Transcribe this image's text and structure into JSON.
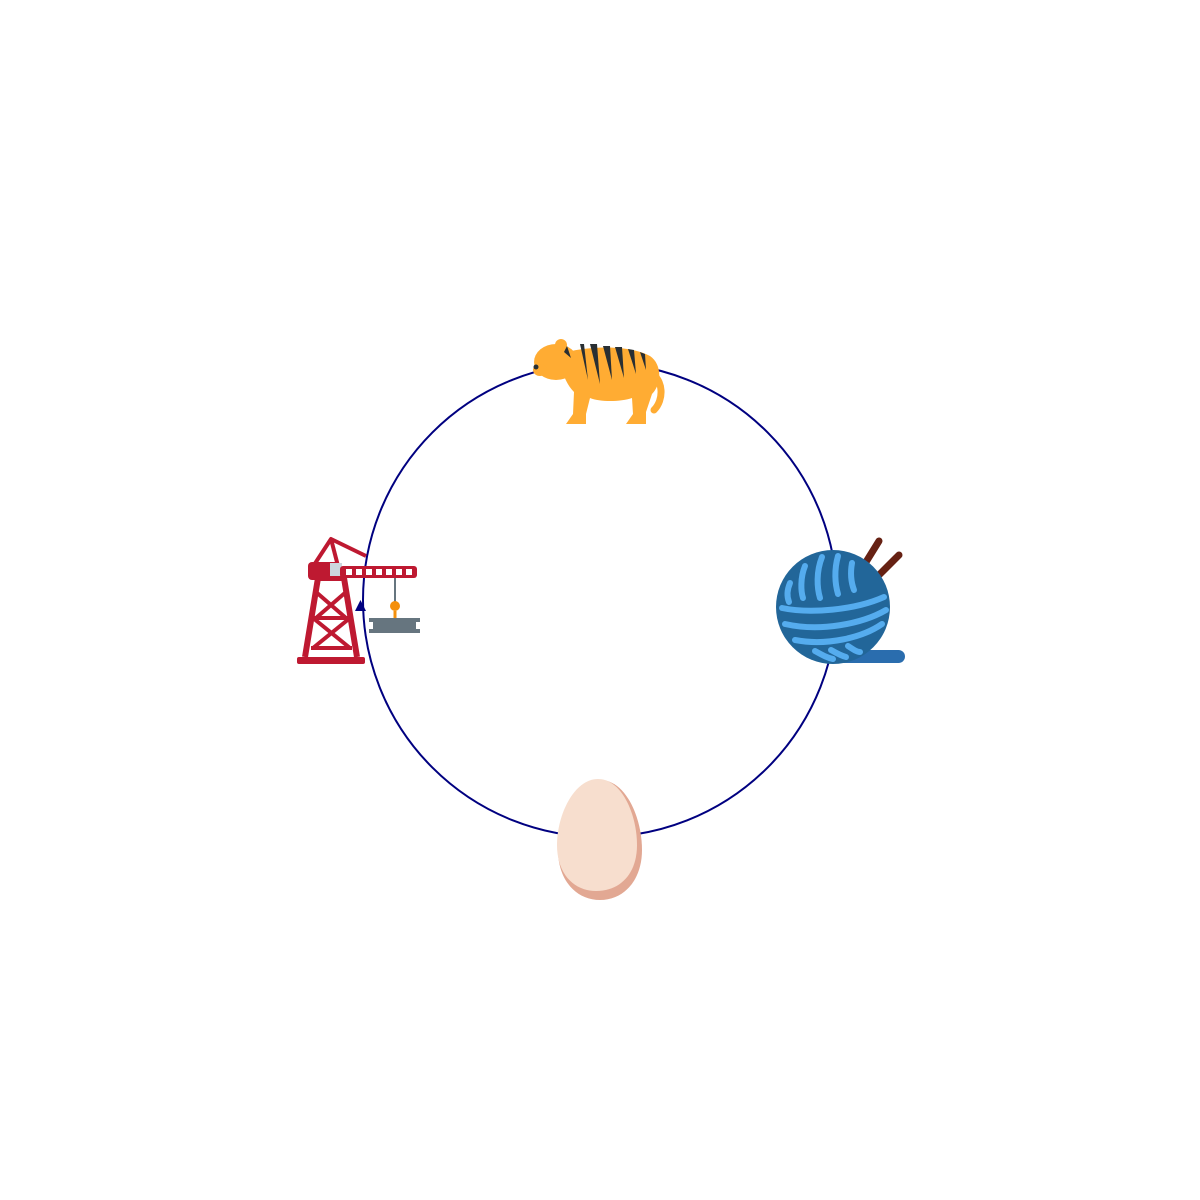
{
  "diagram": {
    "type": "cycle",
    "direction": "counterclockwise",
    "ring_color": "#000080",
    "nodes": [
      {
        "id": "tiger",
        "icon": "tiger-icon",
        "order": 1
      },
      {
        "id": "crane",
        "icon": "construction-crane-icon",
        "order": 2
      },
      {
        "id": "egg",
        "icon": "egg-icon",
        "order": 3
      },
      {
        "id": "yarn",
        "icon": "yarn-ball-icon",
        "order": 4
      }
    ],
    "colors": {
      "tiger_body": "#FFAC33",
      "tiger_stripes": "#292F33",
      "crane_red": "#BE1931",
      "crane_gray": "#66757F",
      "crane_hook": "#F4900C",
      "egg_light": "#F7DECE",
      "egg_shadow": "#E2A893",
      "yarn_dark": "#226699",
      "yarn_mid": "#2A6DAE",
      "yarn_light": "#55ACEE",
      "needles": "#662113"
    }
  }
}
